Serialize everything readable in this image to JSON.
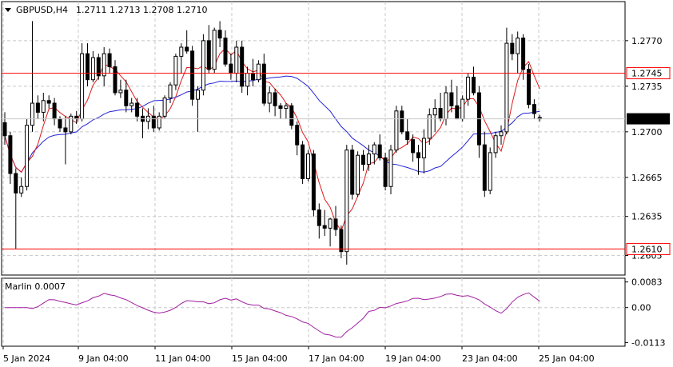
{
  "header": {
    "symbol": "GBPUSD,H4",
    "ohlc": "1.2711 1.2713 1.2708 1.2710"
  },
  "oscillator": {
    "label": "Marlin 0.0007",
    "ticks": [
      "0.0083",
      "0.00",
      "-0.0113"
    ]
  },
  "price_axis": {
    "ticks": [
      "1.2770",
      "1.2735",
      "1.2700",
      "1.2665",
      "1.2635",
      "1.2605"
    ]
  },
  "levels": [
    {
      "price": 1.2745,
      "label": "1.2745",
      "color": "#ff0000"
    },
    {
      "price": 1.261,
      "label": "1.2610",
      "color": "#ff0000"
    }
  ],
  "current_price": {
    "price": 1.271,
    "label": "1.2710"
  },
  "time_axis": {
    "labels": [
      "5 Jan 2024",
      "9 Jan 04:00",
      "11 Jan 04:00",
      "15 Jan 04:00",
      "17 Jan 04:00",
      "19 Jan 04:00",
      "23 Jan 04:00",
      "25 Jan 04:00"
    ]
  },
  "colors": {
    "fast_ma": "#dd1a1a",
    "slow_ma": "#2323d8",
    "oscillator": "#a020a0",
    "grid": "#c8c8c8",
    "level": "#ff0000"
  },
  "chart_data": {
    "type": "candlestick",
    "ylim": [
      1.259,
      1.28
    ],
    "osc_ylim": [
      -0.0125,
      0.0095
    ],
    "candles": [
      [
        1.2707,
        1.2715,
        1.269,
        1.2697
      ],
      [
        1.2697,
        1.27,
        1.266,
        1.2668
      ],
      [
        1.2668,
        1.2672,
        1.261,
        1.2653
      ],
      [
        1.2653,
        1.2665,
        1.265,
        1.2658
      ],
      [
        1.2658,
        1.271,
        1.2655,
        1.2705
      ],
      [
        1.2705,
        1.2785,
        1.27,
        1.2722
      ],
      [
        1.2722,
        1.2728,
        1.271,
        1.2715
      ],
      [
        1.2715,
        1.273,
        1.2708,
        1.2724
      ],
      [
        1.2724,
        1.2728,
        1.2718,
        1.2722
      ],
      [
        1.2722,
        1.2726,
        1.2705,
        1.271
      ],
      [
        1.271,
        1.2712,
        1.27,
        1.2703
      ],
      [
        1.2703,
        1.2712,
        1.2675,
        1.27
      ],
      [
        1.27,
        1.2714,
        1.2698,
        1.2712
      ],
      [
        1.2712,
        1.2716,
        1.2706,
        1.271
      ],
      [
        1.271,
        1.2768,
        1.2708,
        1.276
      ],
      [
        1.276,
        1.2768,
        1.2735,
        1.274
      ],
      [
        1.274,
        1.2762,
        1.2738,
        1.2757
      ],
      [
        1.2757,
        1.276,
        1.274,
        1.2743
      ],
      [
        1.2743,
        1.2765,
        1.2735,
        1.276
      ],
      [
        1.276,
        1.2764,
        1.2745,
        1.275
      ],
      [
        1.275,
        1.2755,
        1.2728,
        1.273
      ],
      [
        1.273,
        1.274,
        1.2726,
        1.2732
      ],
      [
        1.2732,
        1.274,
        1.2715,
        1.272
      ],
      [
        1.272,
        1.2726,
        1.2715,
        1.2722
      ],
      [
        1.2722,
        1.2726,
        1.2708,
        1.2712
      ],
      [
        1.2712,
        1.2718,
        1.2695,
        1.2708
      ],
      [
        1.2708,
        1.2718,
        1.2702,
        1.2712
      ],
      [
        1.2712,
        1.272,
        1.27,
        1.2703
      ],
      [
        1.2703,
        1.2715,
        1.2701,
        1.2712
      ],
      [
        1.2712,
        1.2728,
        1.271,
        1.2726
      ],
      [
        1.2726,
        1.2738,
        1.2722,
        1.2736
      ],
      [
        1.2736,
        1.276,
        1.2732,
        1.2758
      ],
      [
        1.2758,
        1.2768,
        1.2745,
        1.2765
      ],
      [
        1.2765,
        1.2778,
        1.276,
        1.2762
      ],
      [
        1.2762,
        1.2766,
        1.272,
        1.2725
      ],
      [
        1.2725,
        1.2735,
        1.27,
        1.2732
      ],
      [
        1.2732,
        1.2775,
        1.2728,
        1.277
      ],
      [
        1.277,
        1.2782,
        1.2745,
        1.2748
      ],
      [
        1.2748,
        1.278,
        1.2745,
        1.2778
      ],
      [
        1.2778,
        1.2785,
        1.2765,
        1.2772
      ],
      [
        1.2772,
        1.2778,
        1.275,
        1.2752
      ],
      [
        1.2752,
        1.276,
        1.274,
        1.2745
      ],
      [
        1.2745,
        1.277,
        1.2738,
        1.2765
      ],
      [
        1.2765,
        1.277,
        1.273,
        1.2735
      ],
      [
        1.2735,
        1.275,
        1.2728,
        1.2745
      ],
      [
        1.2745,
        1.2756,
        1.2735,
        1.274
      ],
      [
        1.274,
        1.2755,
        1.2738,
        1.2752
      ],
      [
        1.2752,
        1.276,
        1.272,
        1.2722
      ],
      [
        1.2722,
        1.2735,
        1.2715,
        1.273
      ],
      [
        1.273,
        1.2733,
        1.2712,
        1.272
      ],
      [
        1.272,
        1.2722,
        1.271,
        1.2718
      ],
      [
        1.2718,
        1.2722,
        1.271,
        1.272
      ],
      [
        1.272,
        1.2722,
        1.2702,
        1.2705
      ],
      [
        1.2705,
        1.2708,
        1.2682,
        1.269
      ],
      [
        1.269,
        1.2693,
        1.266,
        1.2664
      ],
      [
        1.2664,
        1.2686,
        1.2662,
        1.2683
      ],
      [
        1.2683,
        1.2686,
        1.2635,
        1.264
      ],
      [
        1.264,
        1.2645,
        1.2618,
        1.2628
      ],
      [
        1.2628,
        1.264,
        1.262,
        1.2626
      ],
      [
        1.2626,
        1.2634,
        1.2612,
        1.2633
      ],
      [
        1.2633,
        1.2643,
        1.262,
        1.2625
      ],
      [
        1.2625,
        1.2628,
        1.2603,
        1.2608
      ],
      [
        1.2608,
        1.269,
        1.2598,
        1.2686
      ],
      [
        1.2686,
        1.269,
        1.2648,
        1.2652
      ],
      [
        1.2652,
        1.2685,
        1.265,
        1.2682
      ],
      [
        1.2682,
        1.2686,
        1.267,
        1.2675
      ],
      [
        1.2675,
        1.269,
        1.267,
        1.2683
      ],
      [
        1.2683,
        1.2692,
        1.2675,
        1.269
      ],
      [
        1.269,
        1.2698,
        1.2678,
        1.268
      ],
      [
        1.268,
        1.2684,
        1.2655,
        1.2658
      ],
      [
        1.2658,
        1.269,
        1.2652,
        1.2686
      ],
      [
        1.2686,
        1.272,
        1.2684,
        1.2716
      ],
      [
        1.2716,
        1.272,
        1.2698,
        1.27
      ],
      [
        1.27,
        1.271,
        1.269,
        1.2694
      ],
      [
        1.2694,
        1.2698,
        1.2677,
        1.2684
      ],
      [
        1.2684,
        1.269,
        1.2667,
        1.268
      ],
      [
        1.268,
        1.2702,
        1.2668,
        1.2695
      ],
      [
        1.2695,
        1.2718,
        1.269,
        1.2713
      ],
      [
        1.2713,
        1.2725,
        1.27,
        1.2718
      ],
      [
        1.2718,
        1.273,
        1.2708,
        1.271
      ],
      [
        1.271,
        1.2735,
        1.2705,
        1.273
      ],
      [
        1.273,
        1.274,
        1.2715,
        1.272
      ],
      [
        1.272,
        1.2735,
        1.2712,
        1.271
      ],
      [
        1.271,
        1.2728,
        1.2708,
        1.2725
      ],
      [
        1.2725,
        1.2745,
        1.272,
        1.2742
      ],
      [
        1.2742,
        1.275,
        1.2728,
        1.273
      ],
      [
        1.273,
        1.2735,
        1.268,
        1.269
      ],
      [
        1.269,
        1.27,
        1.265,
        1.2655
      ],
      [
        1.2655,
        1.2688,
        1.2652,
        1.2684
      ],
      [
        1.2684,
        1.27,
        1.268,
        1.2697
      ],
      [
        1.2697,
        1.2705,
        1.269,
        1.27
      ],
      [
        1.27,
        1.278,
        1.2698,
        1.2768
      ],
      [
        1.2768,
        1.2775,
        1.2755,
        1.276
      ],
      [
        1.276,
        1.2777,
        1.2745,
        1.2772
      ],
      [
        1.2772,
        1.2775,
        1.274,
        1.2748
      ],
      [
        1.2748,
        1.2752,
        1.2718,
        1.2721
      ],
      [
        1.2721,
        1.2725,
        1.271,
        1.2714
      ],
      [
        1.2711,
        1.2713,
        1.2708,
        1.271
      ]
    ]
  }
}
